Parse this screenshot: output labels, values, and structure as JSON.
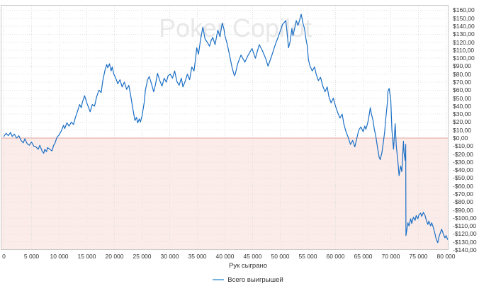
{
  "watermark": "Poker Copilot",
  "colors": {
    "line": "#1b6fc5",
    "legend_swatch": "#74b4de",
    "negative_fill": "#fbecea",
    "zero_line": "#dfa49e",
    "grid": "#e0e0e0",
    "frame": "#c9c9c9",
    "tick_text": "#333333",
    "watermark": "#e8e8e8"
  },
  "chart_data": {
    "type": "line",
    "title": "",
    "xlabel": "Рук сыграно",
    "legend": "Всего выигрышей",
    "grid": true,
    "legend_position": "bottom-center",
    "x_range": [
      0,
      80500
    ],
    "y_range": [
      -140,
      165
    ],
    "x_tick_step": 5000,
    "y_tick_step": 10,
    "x_ticks": [
      "0",
      "5 000",
      "10 000",
      "15 000",
      "20 000",
      "25 000",
      "30 000",
      "35 000",
      "40 000",
      "45 000",
      "50 000",
      "55 000",
      "60 000",
      "65 000",
      "70 000",
      "75 000",
      "80 000"
    ],
    "y_ticks": [
      "$160,00",
      "$150,00",
      "$140,00",
      "$130,00",
      "$120,00",
      "$110,00",
      "$100,00",
      "$90,00",
      "$80,00",
      "$70,00",
      "$60,00",
      "$50,00",
      "$40,00",
      "$30,00",
      "$20,00",
      "$10,00",
      "$0,00",
      "-$10,00",
      "-$20,00",
      "-$30,00",
      "-$40,00",
      "-$50,00",
      "-$60,00",
      "-$70,00",
      "-$80,00",
      "-$90,00",
      "-$100,00",
      "-$110,00",
      "-$120,00",
      "-$130,00",
      "-$140,00"
    ],
    "y_tick_values": [
      160,
      150,
      140,
      130,
      120,
      110,
      100,
      90,
      80,
      70,
      60,
      50,
      40,
      30,
      20,
      10,
      0,
      -10,
      -20,
      -30,
      -40,
      -50,
      -60,
      -70,
      -80,
      -90,
      -100,
      -110,
      -120,
      -130,
      -140
    ],
    "series": [
      {
        "name": "Всего выигрышей",
        "points": [
          [
            0,
            2
          ],
          [
            400,
            6
          ],
          [
            800,
            3
          ],
          [
            1200,
            7
          ],
          [
            1500,
            2
          ],
          [
            1900,
            5
          ],
          [
            2300,
            0
          ],
          [
            2700,
            3
          ],
          [
            3100,
            -3
          ],
          [
            3500,
            -6
          ],
          [
            3800,
            -1
          ],
          [
            4200,
            -7
          ],
          [
            4600,
            -9
          ],
          [
            5000,
            -5
          ],
          [
            5400,
            -10
          ],
          [
            5800,
            -11
          ],
          [
            6200,
            -14
          ],
          [
            6500,
            -9
          ],
          [
            6900,
            -16
          ],
          [
            7200,
            -19
          ],
          [
            7400,
            -14
          ],
          [
            7700,
            -17
          ],
          [
            7900,
            -12
          ],
          [
            8300,
            -14
          ],
          [
            8700,
            -16
          ],
          [
            9000,
            -9
          ],
          [
            9200,
            -7
          ],
          [
            9600,
            1
          ],
          [
            10000,
            4
          ],
          [
            10400,
            9
          ],
          [
            10800,
            16
          ],
          [
            11000,
            12
          ],
          [
            11400,
            19
          ],
          [
            11800,
            15
          ],
          [
            12200,
            20
          ],
          [
            12600,
            17
          ],
          [
            12900,
            25
          ],
          [
            13300,
            33
          ],
          [
            13700,
            42
          ],
          [
            14000,
            38
          ],
          [
            14200,
            45
          ],
          [
            14600,
            53
          ],
          [
            15000,
            44
          ],
          [
            15400,
            37
          ],
          [
            15600,
            33
          ],
          [
            16000,
            42
          ],
          [
            16400,
            40
          ],
          [
            16800,
            52
          ],
          [
            17200,
            60
          ],
          [
            17600,
            57
          ],
          [
            17900,
            72
          ],
          [
            18300,
            85
          ],
          [
            18600,
            92
          ],
          [
            18800,
            88
          ],
          [
            19100,
            93
          ],
          [
            19400,
            84
          ],
          [
            19600,
            89
          ],
          [
            19900,
            80
          ],
          [
            20300,
            74
          ],
          [
            20600,
            68
          ],
          [
            21000,
            73
          ],
          [
            21400,
            64
          ],
          [
            21800,
            70
          ],
          [
            22200,
            61
          ],
          [
            22600,
            66
          ],
          [
            22900,
            55
          ],
          [
            23200,
            42
          ],
          [
            23500,
            30
          ],
          [
            23700,
            22
          ],
          [
            24000,
            26
          ],
          [
            24200,
            19
          ],
          [
            24500,
            24
          ],
          [
            24700,
            20
          ],
          [
            25000,
            28
          ],
          [
            25400,
            45
          ],
          [
            25600,
            60
          ],
          [
            26000,
            73
          ],
          [
            26300,
            77
          ],
          [
            26700,
            68
          ],
          [
            27100,
            58
          ],
          [
            27400,
            66
          ],
          [
            27800,
            81
          ],
          [
            28200,
            72
          ],
          [
            28600,
            65
          ],
          [
            29000,
            75
          ],
          [
            29400,
            70
          ],
          [
            29700,
            78
          ],
          [
            30100,
            80
          ],
          [
            30500,
            75
          ],
          [
            30900,
            84
          ],
          [
            31300,
            71
          ],
          [
            31700,
            66
          ],
          [
            32100,
            75
          ],
          [
            32400,
            64
          ],
          [
            32800,
            71
          ],
          [
            33200,
            80
          ],
          [
            33600,
            73
          ],
          [
            34000,
            89
          ],
          [
            34400,
            84
          ],
          [
            34600,
            95
          ],
          [
            34900,
            113
          ],
          [
            35200,
            105
          ],
          [
            35600,
            124
          ],
          [
            36000,
            139
          ],
          [
            36400,
            124
          ],
          [
            36800,
            120
          ],
          [
            37200,
            115
          ],
          [
            37500,
            122
          ],
          [
            37800,
            126
          ],
          [
            38200,
            117
          ],
          [
            38700,
            135
          ],
          [
            39100,
            127
          ],
          [
            39500,
            144
          ],
          [
            39800,
            137
          ],
          [
            40000,
            128
          ],
          [
            40400,
            118
          ],
          [
            40800,
            105
          ],
          [
            41300,
            88
          ],
          [
            41700,
            78
          ],
          [
            41900,
            81
          ],
          [
            42300,
            93
          ],
          [
            42900,
            104
          ],
          [
            43600,
            95
          ],
          [
            44200,
            104
          ],
          [
            44900,
            112
          ],
          [
            45500,
            100
          ],
          [
            46200,
            117
          ],
          [
            46800,
            109
          ],
          [
            47400,
            99
          ],
          [
            47800,
            90
          ],
          [
            48500,
            104
          ],
          [
            49100,
            117
          ],
          [
            49700,
            128
          ],
          [
            50400,
            142
          ],
          [
            51000,
            147
          ],
          [
            51300,
            128
          ],
          [
            51500,
            113
          ],
          [
            51800,
            121
          ],
          [
            52100,
            137
          ],
          [
            52300,
            128
          ],
          [
            52700,
            140
          ],
          [
            52900,
            147
          ],
          [
            53200,
            141
          ],
          [
            53600,
            150
          ],
          [
            53800,
            155
          ],
          [
            54100,
            144
          ],
          [
            54400,
            137
          ],
          [
            54600,
            126
          ],
          [
            54900,
            115
          ],
          [
            55100,
            98
          ],
          [
            55400,
            90
          ],
          [
            55800,
            84
          ],
          [
            56200,
            89
          ],
          [
            56500,
            80
          ],
          [
            56900,
            72
          ],
          [
            57300,
            76
          ],
          [
            57700,
            65
          ],
          [
            58100,
            58
          ],
          [
            58500,
            64
          ],
          [
            58800,
            52
          ],
          [
            59200,
            44
          ],
          [
            59600,
            50
          ],
          [
            60000,
            40
          ],
          [
            60400,
            32
          ],
          [
            60800,
            25
          ],
          [
            61200,
            30
          ],
          [
            61500,
            18
          ],
          [
            61900,
            8
          ],
          [
            62300,
            1
          ],
          [
            62700,
            -8
          ],
          [
            63100,
            -3
          ],
          [
            63500,
            -11
          ],
          [
            63800,
            -2
          ],
          [
            64200,
            10
          ],
          [
            64600,
            14
          ],
          [
            65000,
            8
          ],
          [
            65300,
            15
          ],
          [
            65500,
            11
          ],
          [
            65800,
            18
          ],
          [
            66000,
            25
          ],
          [
            66300,
            38
          ],
          [
            66500,
            30
          ],
          [
            66800,
            22
          ],
          [
            67000,
            12
          ],
          [
            67300,
            2
          ],
          [
            67600,
            -12
          ],
          [
            67900,
            -24
          ],
          [
            68100,
            -27
          ],
          [
            68400,
            -18
          ],
          [
            68600,
            -8
          ],
          [
            68900,
            8
          ],
          [
            69100,
            25
          ],
          [
            69400,
            45
          ],
          [
            69500,
            59
          ],
          [
            69700,
            62
          ],
          [
            70000,
            48
          ],
          [
            70200,
            10
          ],
          [
            70500,
            -14
          ],
          [
            70800,
            18
          ],
          [
            71000,
            -10
          ],
          [
            71300,
            -30
          ],
          [
            71500,
            -47
          ],
          [
            71800,
            -35
          ],
          [
            72000,
            -42
          ],
          [
            72300,
            -4
          ],
          [
            72400,
            -18
          ],
          [
            72600,
            -28
          ],
          [
            72700,
            -8
          ],
          [
            72750,
            -122
          ],
          [
            73100,
            -106
          ],
          [
            73300,
            -110
          ],
          [
            73600,
            -101
          ],
          [
            73800,
            -107
          ],
          [
            74100,
            -99
          ],
          [
            74400,
            -103
          ],
          [
            74600,
            -97
          ],
          [
            74900,
            -101
          ],
          [
            75100,
            -96
          ],
          [
            75400,
            -94
          ],
          [
            75600,
            -98
          ],
          [
            75900,
            -93
          ],
          [
            76200,
            -97
          ],
          [
            76400,
            -102
          ],
          [
            76700,
            -108
          ],
          [
            76900,
            -104
          ],
          [
            77200,
            -110
          ],
          [
            77400,
            -106
          ],
          [
            77700,
            -112
          ],
          [
            78000,
            -120
          ],
          [
            78200,
            -126
          ],
          [
            78500,
            -131
          ],
          [
            78700,
            -124
          ],
          [
            79000,
            -118
          ],
          [
            79200,
            -114
          ],
          [
            79500,
            -120
          ],
          [
            79800,
            -125
          ],
          [
            80000,
            -122
          ],
          [
            80300,
            -127
          ],
          [
            80400,
            -125
          ]
        ]
      }
    ]
  }
}
